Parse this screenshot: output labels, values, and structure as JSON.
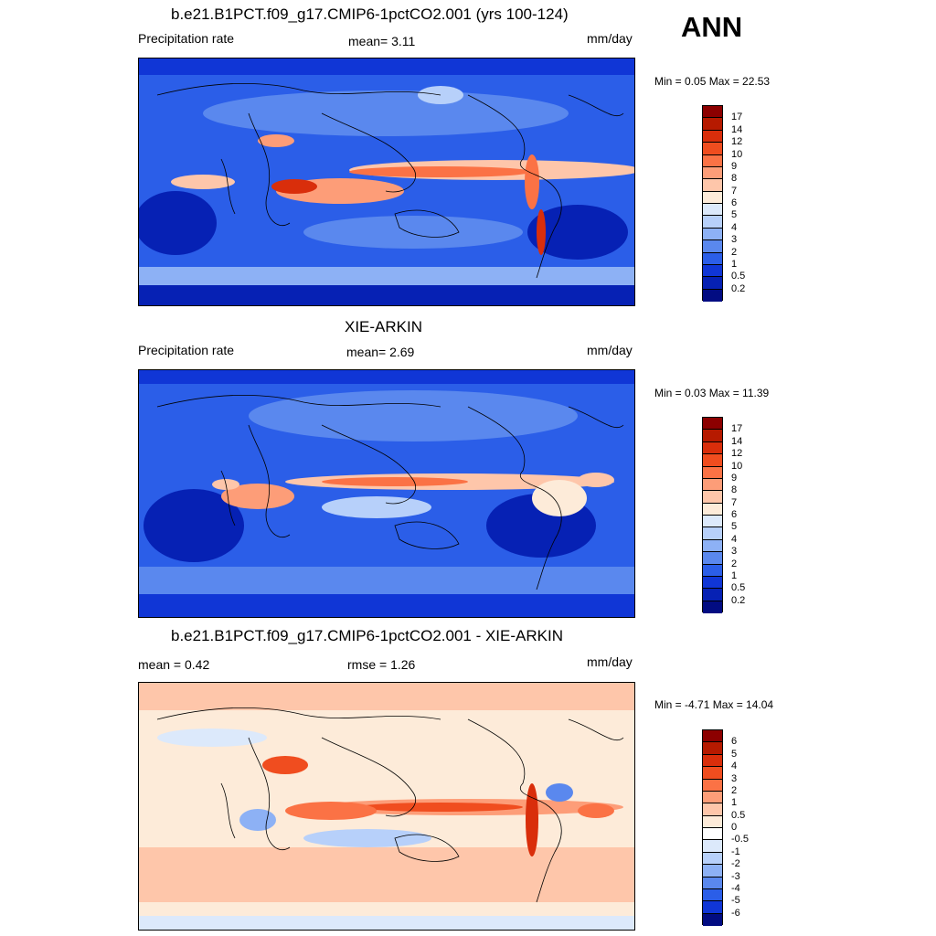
{
  "season_label": "ANN",
  "panels": [
    {
      "title": "b.e21.B1PCT.f09_g17.CMIP6-1pctCO2.001 (yrs 100-124)",
      "left_label": "Precipitation rate",
      "center_label": "mean=   3.11",
      "right_label": "mm/day",
      "minmax": "Min =   0.05 Max =  22.53",
      "colorbar": {
        "labels": [
          "17",
          "14",
          "12",
          "10",
          "9",
          "8",
          "7",
          "6",
          "5",
          "4",
          "3",
          "2",
          "1",
          "0.5",
          "0.2"
        ],
        "colors": [
          "#8c0000",
          "#b61a00",
          "#d92e0b",
          "#f04d1f",
          "#fb7245",
          "#fd9d78",
          "#fec6aa",
          "#fdebd9",
          "#dce9fb",
          "#b7d0fa",
          "#8db1f5",
          "#5a88ee",
          "#2b5ee8",
          "#1036d6",
          "#0621b4",
          "#020c82"
        ]
      },
      "scene": "model"
    },
    {
      "title": "XIE-ARKIN",
      "left_label": "Precipitation rate",
      "center_label": "mean=   2.69",
      "right_label": "mm/day",
      "minmax": "Min =   0.03 Max =  11.39",
      "colorbar": {
        "labels": [
          "17",
          "14",
          "12",
          "10",
          "9",
          "8",
          "7",
          "6",
          "5",
          "4",
          "3",
          "2",
          "1",
          "0.5",
          "0.2"
        ],
        "colors": [
          "#8c0000",
          "#b61a00",
          "#d92e0b",
          "#f04d1f",
          "#fb7245",
          "#fd9d78",
          "#fec6aa",
          "#fdebd9",
          "#dce9fb",
          "#b7d0fa",
          "#8db1f5",
          "#5a88ee",
          "#2b5ee8",
          "#1036d6",
          "#0621b4",
          "#020c82"
        ]
      },
      "scene": "obs"
    },
    {
      "title": "b.e21.B1PCT.f09_g17.CMIP6-1pctCO2.001 - XIE-ARKIN",
      "left_label": "mean =   0.42",
      "center_label": "rmse =   1.26",
      "right_label": "mm/day",
      "minmax": "Min =  -4.71 Max =  14.04",
      "colorbar": {
        "labels": [
          "6",
          "5",
          "4",
          "3",
          "2",
          "1",
          "0.5",
          "0",
          "-0.5",
          "-1",
          "-2",
          "-3",
          "-4",
          "-5",
          "-6"
        ],
        "colors": [
          "#8c0000",
          "#b61a00",
          "#d92e0b",
          "#f04d1f",
          "#fb7245",
          "#fd9d78",
          "#fec6aa",
          "#fdebd9",
          "#ffffff",
          "#dce9fb",
          "#b7d0fa",
          "#8db1f5",
          "#5a88ee",
          "#2b5ee8",
          "#1036d6",
          "#020c82"
        ]
      },
      "scene": "diff"
    }
  ]
}
